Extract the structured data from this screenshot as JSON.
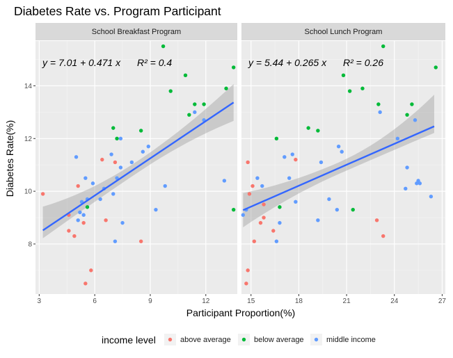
{
  "chart_data": {
    "type": "scatter",
    "title": "Diabetes Rate vs. Program Participant",
    "xlabel": "Participant Proportion(%)",
    "ylabel": "Diabetes Rate(%)",
    "ylim": [
      6.1,
      15.7
    ],
    "yticks": [
      8,
      10,
      12,
      14
    ],
    "grid": true,
    "legend": {
      "title": "income level",
      "position": "bottom",
      "entries": [
        {
          "key": "above",
          "label": "above average",
          "color": "#F8766D"
        },
        {
          "key": "below",
          "label": "below average",
          "color": "#00BA38"
        },
        {
          "key": "middle",
          "label": "middle income",
          "color": "#619CFF"
        }
      ]
    },
    "fit_color": "#3366FF",
    "band_color": "#999999",
    "panels": [
      {
        "strip": "School Breakfast Program",
        "equation": "y = 7.01 + 0.471 x",
        "r2": "R² = 0.4",
        "xlim": [
          2.8,
          13.7
        ],
        "xticks": [
          3,
          6,
          9,
          12
        ],
        "fit": {
          "intercept": 7.01,
          "slope": 0.471,
          "x_range": [
            3.2,
            13.5
          ],
          "se_low": [
            0.9,
            0.3
          ],
          "se_mid": 0.22,
          "se_high": [
            0.7,
            0.7
          ]
        },
        "points": {
          "above": [
            [
              3.2,
              9.9
            ],
            [
              4.6,
              8.5
            ],
            [
              4.6,
              9.1
            ],
            [
              4.9,
              8.3
            ],
            [
              5.1,
              10.2
            ],
            [
              5.4,
              8.8
            ],
            [
              5.5,
              6.5
            ],
            [
              5.8,
              7.0
            ],
            [
              6.4,
              11.2
            ],
            [
              6.6,
              8.9
            ],
            [
              7.1,
              11.1
            ],
            [
              8.5,
              8.1
            ]
          ],
          "below": [
            [
              5.6,
              9.4
            ],
            [
              7.0,
              12.4
            ],
            [
              7.2,
              12.0
            ],
            [
              8.5,
              12.3
            ],
            [
              9.7,
              15.5
            ],
            [
              10.1,
              13.8
            ],
            [
              10.9,
              14.4
            ],
            [
              11.1,
              12.9
            ],
            [
              11.4,
              13.3
            ],
            [
              11.9,
              13.3
            ],
            [
              13.1,
              13.9
            ],
            [
              13.5,
              14.7
            ],
            [
              13.5,
              9.3
            ]
          ],
          "middle": [
            [
              5.0,
              11.3
            ],
            [
              5.1,
              8.9
            ],
            [
              5.2,
              9.2
            ],
            [
              5.3,
              9.6
            ],
            [
              5.4,
              9.1
            ],
            [
              5.5,
              10.5
            ],
            [
              5.6,
              9.7
            ],
            [
              5.9,
              10.3
            ],
            [
              6.3,
              9.7
            ],
            [
              6.5,
              10.1
            ],
            [
              6.9,
              11.4
            ],
            [
              7.0,
              9.9
            ],
            [
              7.1,
              8.1
            ],
            [
              7.2,
              10.5
            ],
            [
              7.4,
              10.9
            ],
            [
              7.4,
              12.0
            ],
            [
              7.5,
              8.8
            ],
            [
              8.0,
              11.1
            ],
            [
              8.6,
              11.5
            ],
            [
              8.9,
              11.7
            ],
            [
              9.3,
              9.3
            ],
            [
              9.8,
              10.2
            ],
            [
              11.4,
              13.0
            ],
            [
              11.9,
              12.7
            ],
            [
              13.0,
              10.4
            ]
          ]
        }
      },
      {
        "strip": "School Lunch Program",
        "equation": "y = 5.44 + 0.265 x",
        "r2": "R² = 0.26",
        "xlim": [
          14.4,
          27.2
        ],
        "xticks": [
          15,
          18,
          21,
          24,
          27
        ],
        "fit": {
          "intercept": 5.44,
          "slope": 0.265,
          "x_range": [
            14.5,
            26.5
          ],
          "se_low": [
            0.65,
            0.65
          ],
          "se_mid": 0.22,
          "se_high": [
            1.2,
            0.25
          ]
        },
        "points": {
          "above": [
            [
              14.7,
              6.5
            ],
            [
              14.8,
              7.0
            ],
            [
              14.8,
              11.1
            ],
            [
              14.9,
              9.9
            ],
            [
              15.1,
              10.2
            ],
            [
              15.2,
              8.1
            ],
            [
              15.6,
              8.8
            ],
            [
              15.8,
              9.0
            ],
            [
              15.8,
              9.5
            ],
            [
              16.4,
              8.5
            ],
            [
              17.8,
              11.2
            ],
            [
              22.9,
              8.9
            ],
            [
              23.3,
              8.3
            ]
          ],
          "below": [
            [
              16.6,
              12.0
            ],
            [
              16.8,
              9.4
            ],
            [
              18.6,
              12.4
            ],
            [
              19.2,
              12.3
            ],
            [
              20.8,
              14.4
            ],
            [
              21.2,
              13.8
            ],
            [
              21.4,
              9.3
            ],
            [
              22.0,
              13.9
            ],
            [
              23.0,
              13.3
            ],
            [
              23.3,
              15.5
            ],
            [
              24.8,
              12.9
            ],
            [
              25.1,
              13.3
            ],
            [
              26.6,
              14.7
            ]
          ],
          "middle": [
            [
              14.5,
              9.1
            ],
            [
              14.7,
              9.3
            ],
            [
              15.4,
              10.5
            ],
            [
              15.7,
              10.2
            ],
            [
              16.6,
              8.1
            ],
            [
              16.8,
              8.8
            ],
            [
              17.1,
              11.3
            ],
            [
              17.4,
              10.5
            ],
            [
              17.6,
              11.4
            ],
            [
              17.8,
              9.6
            ],
            [
              19.2,
              8.9
            ],
            [
              19.4,
              11.1
            ],
            [
              19.9,
              9.7
            ],
            [
              20.4,
              9.3
            ],
            [
              20.5,
              11.7
            ],
            [
              20.7,
              11.5
            ],
            [
              23.1,
              13.0
            ],
            [
              24.2,
              12.0
            ],
            [
              24.7,
              10.1
            ],
            [
              24.8,
              10.9
            ],
            [
              25.3,
              12.7
            ],
            [
              25.4,
              10.3
            ],
            [
              25.5,
              10.4
            ],
            [
              25.6,
              10.3
            ],
            [
              26.3,
              9.8
            ]
          ]
        }
      }
    ]
  }
}
